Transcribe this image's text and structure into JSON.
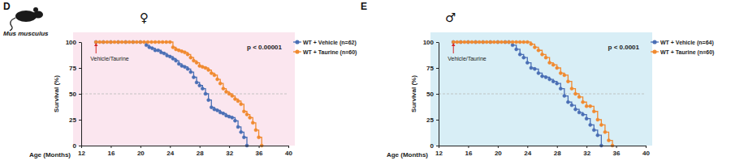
{
  "chart_data": [
    {
      "type": "line",
      "panel_label": "D",
      "organism": "Mus musculus",
      "sex_symbol": "♀",
      "p_value": "p < 0.00001",
      "x_label": "Age (Months)",
      "y_label": "Survival (%)",
      "xlim": [
        12,
        40
      ],
      "ylim": [
        0,
        100
      ],
      "xticks": [
        12,
        16,
        20,
        24,
        28,
        32,
        36,
        40
      ],
      "yticks": [
        0,
        25,
        50,
        75,
        100
      ],
      "reference_y": 50,
      "annotations": [
        {
          "text": "Vehicle/Taurine",
          "x": 14
        }
      ],
      "legend": "right",
      "marker": "circle",
      "line_style": "step",
      "series": [
        {
          "name": "WT + Vehicle (n=62)",
          "color": "#4a6fb5",
          "x": [
            14,
            15,
            16,
            17,
            18,
            19,
            20,
            20.8,
            21.2,
            21.6,
            22,
            22.4,
            22.8,
            23.2,
            23.6,
            24,
            24.4,
            24.8,
            25.2,
            25.6,
            26,
            26.4,
            26.8,
            27.2,
            27.6,
            28,
            28.4,
            28.8,
            29.2,
            29.6,
            30,
            30.4,
            30.8,
            31.2,
            31.6,
            32,
            32.4,
            32.8,
            33.2,
            33.6,
            34,
            34.4
          ],
          "values": [
            100,
            100,
            100,
            100,
            100,
            100,
            100,
            97,
            95,
            94,
            92,
            92,
            90,
            89,
            87,
            86,
            84,
            82,
            79,
            77,
            76,
            74,
            71,
            66,
            61,
            58,
            55,
            50,
            44,
            37,
            35,
            34,
            32,
            31,
            29,
            28,
            27,
            24,
            18,
            13,
            8,
            0
          ]
        },
        {
          "name": "WT + Taurine (n=60)",
          "color": "#f08a30",
          "x": [
            14,
            14.5,
            15,
            15.5,
            16,
            16.5,
            17,
            17.5,
            18,
            18.5,
            19,
            19.5,
            20,
            20.5,
            21,
            21.5,
            22,
            22.5,
            23,
            23.5,
            24,
            24.4,
            24.8,
            25.2,
            25.6,
            26,
            26.4,
            26.8,
            27.2,
            27.6,
            28,
            28.4,
            28.8,
            29.2,
            29.6,
            30,
            30.4,
            30.8,
            31.2,
            31.6,
            32,
            32.4,
            32.8,
            33.2,
            33.6,
            34,
            34.4,
            34.8,
            35.2,
            35.6,
            36,
            36.4
          ],
          "values": [
            100,
            100,
            100,
            100,
            100,
            100,
            100,
            100,
            100,
            100,
            100,
            100,
            100,
            100,
            100,
            100,
            100,
            100,
            100,
            100,
            100,
            95,
            93,
            92,
            91,
            90,
            88,
            85,
            82,
            80,
            77,
            76,
            75,
            73,
            70,
            68,
            64,
            60,
            55,
            52,
            50,
            48,
            45,
            43,
            40,
            33,
            30,
            27,
            22,
            15,
            8,
            0
          ]
        }
      ]
    },
    {
      "type": "line",
      "panel_label": "E",
      "sex_symbol": "♂",
      "p_value": "p < 0.0001",
      "x_label": "Age (Months)",
      "y_label": "Survival (%)",
      "xlim": [
        12,
        40
      ],
      "ylim": [
        0,
        100
      ],
      "xticks": [
        12,
        16,
        20,
        24,
        28,
        32,
        36,
        40
      ],
      "yticks": [
        0,
        25,
        50,
        75,
        100
      ],
      "reference_y": 50,
      "annotations": [
        {
          "text": "Vehicle/Taurine",
          "x": 14
        }
      ],
      "legend": "right",
      "marker": "circle",
      "line_style": "step",
      "series": [
        {
          "name": "WT + Vehicle (n=64)",
          "color": "#4a6fb5",
          "x": [
            14,
            15,
            16,
            17,
            18,
            19,
            20,
            21,
            21.5,
            22,
            22.5,
            23,
            23.5,
            24,
            24.5,
            25,
            25.5,
            26,
            26.5,
            27,
            27.5,
            28,
            28.5,
            29,
            29.5,
            30,
            30.5,
            31,
            31.5,
            32,
            32.5,
            33,
            33.5,
            34
          ],
          "values": [
            100,
            100,
            100,
            100,
            100,
            100,
            100,
            100,
            100,
            97,
            93,
            88,
            85,
            80,
            75,
            74,
            70,
            67,
            66,
            64,
            62,
            60,
            55,
            48,
            42,
            39,
            35,
            32,
            30,
            26,
            20,
            15,
            10,
            0
          ]
        },
        {
          "name": "WT + Taurine (n=60)",
          "color": "#f08a30",
          "x": [
            14,
            14.5,
            15,
            15.5,
            16,
            16.5,
            17,
            17.5,
            18,
            18.5,
            19,
            19.5,
            20,
            20.5,
            21,
            21.5,
            22,
            22.5,
            23,
            23.5,
            24,
            24.5,
            25,
            25.5,
            26,
            26.5,
            27,
            27.5,
            28,
            28.5,
            29,
            29.5,
            30,
            30.5,
            31,
            31.5,
            32,
            32.5,
            33,
            33.5,
            34,
            34.5,
            35,
            35.5
          ],
          "values": [
            100,
            100,
            100,
            100,
            100,
            100,
            100,
            100,
            100,
            100,
            100,
            100,
            100,
            100,
            100,
            100,
            100,
            100,
            100,
            100,
            100,
            98,
            95,
            92,
            88,
            85,
            80,
            78,
            75,
            70,
            68,
            62,
            55,
            50,
            47,
            42,
            38,
            38,
            33,
            25,
            20,
            13,
            5,
            0
          ]
        }
      ]
    }
  ]
}
